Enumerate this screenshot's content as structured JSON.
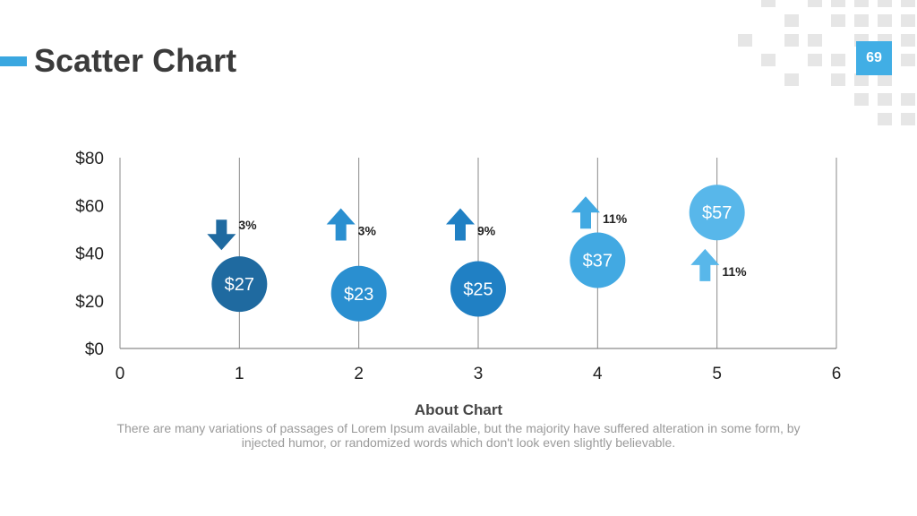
{
  "header": {
    "title": "Scatter Chart",
    "page_number": "69"
  },
  "colors": {
    "accent": "#3aa7e0",
    "bubble_dark": "#1f6aa0",
    "bubble_mid": "#2a8fd0",
    "bubble_light": "#42a9e2",
    "bubble_pale": "#58b7ea"
  },
  "chart_data": {
    "type": "scatter",
    "xlim": [
      0,
      6
    ],
    "ylim": [
      0,
      80
    ],
    "x_ticks": [
      "0",
      "1",
      "2",
      "3",
      "4",
      "5",
      "6"
    ],
    "y_ticks": [
      "$0",
      "$20",
      "$40",
      "$60",
      "$80"
    ],
    "grid": "vertical",
    "points": [
      {
        "x": 1,
        "y": 27,
        "label": "$27",
        "color": "#1f6aa0"
      },
      {
        "x": 2,
        "y": 23,
        "label": "$23",
        "color": "#2a8fd0"
      },
      {
        "x": 3,
        "y": 25,
        "label": "$25",
        "color": "#2080c4"
      },
      {
        "x": 4,
        "y": 37,
        "label": "$37",
        "color": "#42a9e2"
      },
      {
        "x": 5,
        "y": 57,
        "label": "$57",
        "color": "#58b7ea"
      }
    ],
    "annotations": [
      {
        "x": 0.85,
        "y": 48,
        "direction": "down",
        "text": "3%",
        "color": "#1f6aa0"
      },
      {
        "x": 1.85,
        "y": 52,
        "direction": "up",
        "text": "3%",
        "color": "#2a8fd0"
      },
      {
        "x": 2.85,
        "y": 52,
        "direction": "up",
        "text": "9%",
        "color": "#2080c4"
      },
      {
        "x": 3.9,
        "y": 57,
        "direction": "up",
        "text": "11%",
        "color": "#42a9e2"
      },
      {
        "x": 4.9,
        "y": 35,
        "direction": "up",
        "text": "11%",
        "color": "#58b7ea"
      }
    ],
    "xlabel": "",
    "ylabel": ""
  },
  "caption": {
    "title": "About Chart",
    "body": "There are many variations of passages of Lorem Ipsum available, but the majority have suffered alteration in some form, by injected humor, or randomized words which don't look even slightly believable."
  }
}
